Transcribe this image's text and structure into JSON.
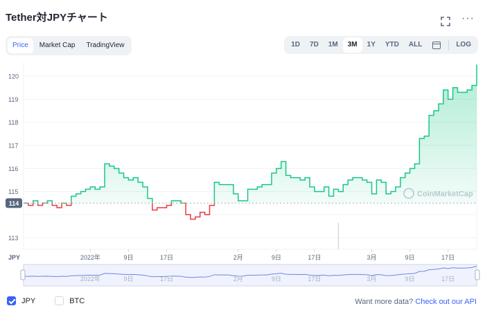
{
  "header": {
    "title": "Tether対JPYチャート"
  },
  "tabs": [
    {
      "label": "Price",
      "active": true
    },
    {
      "label": "Market Cap",
      "active": false
    },
    {
      "label": "TradingView",
      "active": false
    }
  ],
  "ranges": [
    "1D",
    "7D",
    "1M",
    "3M",
    "1Y",
    "YTD",
    "ALL"
  ],
  "active_range": "3M",
  "log_label": "LOG",
  "colors": {
    "up": "#16c784",
    "down": "#ea3943",
    "accent": "#3861fb",
    "grid": "#eff2f5"
  },
  "chart_data": {
    "type": "line",
    "currency_label": "JPY",
    "ylim": [
      112.5,
      120.6
    ],
    "yticks": [
      113,
      114,
      115,
      116,
      117,
      118,
      119,
      120
    ],
    "baseline": 114.5,
    "baseline_label": "114",
    "x_domain": [
      0,
      95
    ],
    "xticks": [
      {
        "label": "2022年",
        "x": 14
      },
      {
        "label": "9日",
        "x": 22
      },
      {
        "label": "17日",
        "x": 30
      },
      {
        "label": "2月",
        "x": 45
      },
      {
        "label": "9日",
        "x": 53
      },
      {
        "label": "17日",
        "x": 61
      },
      {
        "label": "3月",
        "x": 73
      },
      {
        "label": "9日",
        "x": 81
      },
      {
        "label": "17日",
        "x": 89
      }
    ],
    "series": [
      {
        "values": [
          [
            0,
            114.5
          ],
          [
            1,
            114.4
          ],
          [
            2,
            114.6
          ],
          [
            3,
            114.4
          ],
          [
            4,
            114.5
          ],
          [
            5,
            114.6
          ],
          [
            6,
            114.4
          ],
          [
            7,
            114.3
          ],
          [
            8,
            114.5
          ],
          [
            9,
            114.4
          ],
          [
            10,
            114.8
          ],
          [
            11,
            114.9
          ],
          [
            12,
            115.0
          ],
          [
            13,
            115.1
          ],
          [
            14,
            115.2
          ],
          [
            15,
            115.1
          ],
          [
            16,
            115.2
          ],
          [
            17,
            116.2
          ],
          [
            18,
            116.1
          ],
          [
            19,
            116.0
          ],
          [
            20,
            115.8
          ],
          [
            21,
            115.6
          ],
          [
            22,
            115.5
          ],
          [
            23,
            115.6
          ],
          [
            24,
            115.4
          ],
          [
            25,
            115.2
          ],
          [
            26,
            114.7
          ],
          [
            27,
            114.2
          ],
          [
            28,
            114.3
          ],
          [
            29,
            114.3
          ],
          [
            30,
            114.4
          ],
          [
            31,
            114.6
          ],
          [
            32,
            114.6
          ],
          [
            33,
            114.5
          ],
          [
            34,
            114.0
          ],
          [
            35,
            113.8
          ],
          [
            36,
            113.9
          ],
          [
            37,
            114.1
          ],
          [
            38,
            114.0
          ],
          [
            39,
            114.4
          ],
          [
            40,
            115.4
          ],
          [
            41,
            115.3
          ],
          [
            42,
            115.3
          ],
          [
            43,
            115.3
          ],
          [
            44,
            114.9
          ],
          [
            45,
            114.6
          ],
          [
            46,
            114.6
          ],
          [
            47,
            115.1
          ],
          [
            48,
            115.1
          ],
          [
            49,
            115.2
          ],
          [
            50,
            115.3
          ],
          [
            51,
            115.3
          ],
          [
            52,
            115.8
          ],
          [
            53,
            116.0
          ],
          [
            54,
            116.3
          ],
          [
            55,
            115.7
          ],
          [
            56,
            115.6
          ],
          [
            57,
            115.6
          ],
          [
            58,
            115.5
          ],
          [
            59,
            115.6
          ],
          [
            60,
            115.2
          ],
          [
            61,
            115.0
          ],
          [
            62,
            115.0
          ],
          [
            63,
            115.2
          ],
          [
            64,
            114.8
          ],
          [
            65,
            115.1
          ],
          [
            66,
            115.0
          ],
          [
            67,
            115.3
          ],
          [
            68,
            115.5
          ],
          [
            69,
            115.6
          ],
          [
            70,
            115.6
          ],
          [
            71,
            115.5
          ],
          [
            72,
            115.4
          ],
          [
            73,
            114.9
          ],
          [
            74,
            115.5
          ],
          [
            75,
            115.4
          ],
          [
            76,
            114.9
          ],
          [
            77,
            115.0
          ],
          [
            78,
            115.2
          ],
          [
            79,
            115.6
          ],
          [
            80,
            115.8
          ],
          [
            81,
            116.0
          ],
          [
            82,
            116.2
          ],
          [
            83,
            117.3
          ],
          [
            84,
            117.4
          ],
          [
            85,
            118.3
          ],
          [
            86,
            118.5
          ],
          [
            87,
            118.8
          ],
          [
            88,
            119.4
          ],
          [
            89,
            119.0
          ],
          [
            90,
            119.5
          ],
          [
            91,
            119.3
          ],
          [
            92,
            119.3
          ],
          [
            93,
            119.4
          ],
          [
            94,
            119.6
          ],
          [
            95,
            120.5
          ]
        ]
      }
    ],
    "watermark": "CoinMarketCap"
  },
  "navigator": {
    "ticks": [
      "2022年",
      "9日",
      "17日",
      "2月",
      "9日",
      "17日",
      "3月",
      "9日",
      "17日"
    ]
  },
  "legend": [
    {
      "label": "JPY",
      "checked": true
    },
    {
      "label": "BTC",
      "checked": false
    }
  ],
  "api": {
    "prefix": "Want more data?",
    "link": "Check out our API"
  }
}
